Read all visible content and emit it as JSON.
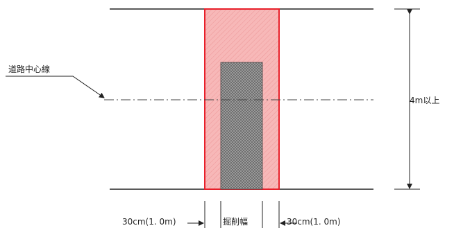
{
  "labels": {
    "road_center_line": "道路中心線",
    "height": "4m以上",
    "left_offset": "30cm(1. 0m)",
    "excavation_width": "掘削幅",
    "right_offset": "30cm(1. 0m)"
  },
  "colors": {
    "road_line": "#222222",
    "pink_fill": "#f7b3b3",
    "red_border": "#e8202a",
    "trench_fill": "#7a7a7a",
    "centerline": "#444444"
  }
}
